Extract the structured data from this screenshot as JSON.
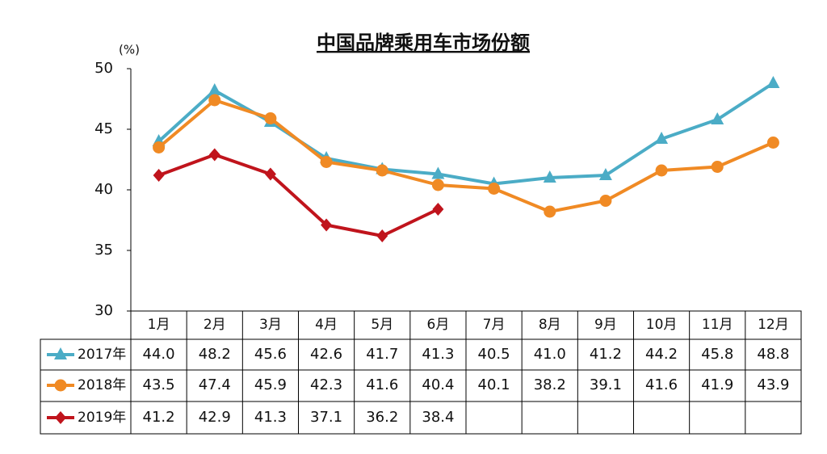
{
  "chart_data": {
    "type": "line",
    "title": "中国品牌乘用车市场份额",
    "y_label": "(%)",
    "categories": [
      "1月",
      "2月",
      "3月",
      "4月",
      "5月",
      "6月",
      "7月",
      "8月",
      "9月",
      "10月",
      "11月",
      "12月"
    ],
    "series": [
      {
        "name": "2017年",
        "color": "#4bacc6",
        "marker": "triangle",
        "values": [
          44.0,
          48.2,
          45.6,
          42.6,
          41.7,
          41.3,
          40.5,
          41.0,
          41.2,
          44.2,
          45.8,
          48.8
        ],
        "value_labels": [
          "44.0",
          "48.2",
          "45.6",
          "42.6",
          "41.7",
          "41.3",
          "40.5",
          "41.0",
          "41.2",
          "44.2",
          "45.8",
          "48.8"
        ]
      },
      {
        "name": "2018年",
        "color": "#f08a24",
        "marker": "circle",
        "values": [
          43.5,
          47.4,
          45.9,
          42.3,
          41.6,
          40.4,
          40.1,
          38.2,
          39.1,
          41.6,
          41.9,
          43.9
        ],
        "value_labels": [
          "43.5",
          "47.4",
          "45.9",
          "42.3",
          "41.6",
          "40.4",
          "40.1",
          "38.2",
          "39.1",
          "41.6",
          "41.9",
          "43.9"
        ]
      },
      {
        "name": "2019年",
        "color": "#c0141c",
        "marker": "diamond",
        "values": [
          41.2,
          42.9,
          41.3,
          37.1,
          36.2,
          38.4,
          null,
          null,
          null,
          null,
          null,
          null
        ],
        "value_labels": [
          "41.2",
          "42.9",
          "41.3",
          "37.1",
          "36.2",
          "38.4",
          null,
          null,
          null,
          null,
          null,
          null
        ]
      }
    ],
    "ylim": [
      30,
      50
    ],
    "yticks": [
      30,
      35,
      40,
      45,
      50
    ]
  }
}
